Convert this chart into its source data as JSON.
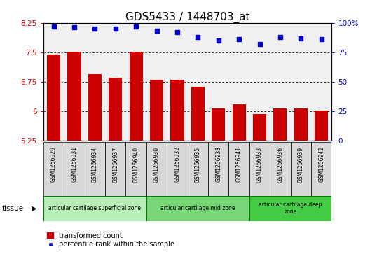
{
  "title": "GDS5433 / 1448703_at",
  "samples": [
    "GSM1256929",
    "GSM1256931",
    "GSM1256934",
    "GSM1256937",
    "GSM1256940",
    "GSM1256930",
    "GSM1256932",
    "GSM1256935",
    "GSM1256938",
    "GSM1256941",
    "GSM1256933",
    "GSM1256936",
    "GSM1256939",
    "GSM1256942"
  ],
  "bar_values": [
    7.45,
    7.52,
    6.95,
    6.85,
    7.52,
    6.8,
    6.8,
    6.62,
    6.08,
    6.18,
    5.93,
    6.08,
    6.08,
    6.03
  ],
  "scatter_values": [
    97,
    96,
    95,
    95,
    97,
    93,
    92,
    88,
    85,
    86,
    82,
    88,
    87,
    86
  ],
  "ylim_left": [
    5.25,
    8.25
  ],
  "ylim_right": [
    0,
    100
  ],
  "yticks_left": [
    5.25,
    6.0,
    6.75,
    7.5,
    8.25
  ],
  "yticks_right": [
    0,
    25,
    50,
    75,
    100
  ],
  "ytick_labels_left": [
    "5.25",
    "6",
    "6.75",
    "7.5",
    "8.25"
  ],
  "ytick_labels_right": [
    "0",
    "25",
    "50",
    "75",
    "100%"
  ],
  "bar_color": "#cc0000",
  "scatter_color": "#0000cc",
  "tissue_groups": [
    {
      "label": "articular cartilage superficial zone",
      "start": 0,
      "end": 5,
      "color": "#b8eeb8"
    },
    {
      "label": "articular cartilage mid zone",
      "start": 5,
      "end": 10,
      "color": "#78d878"
    },
    {
      "label": "articular cartilage deep\nzone",
      "start": 10,
      "end": 14,
      "color": "#44cc44"
    }
  ],
  "legend_bar_label": "transformed count",
  "legend_scatter_label": "percentile rank within the sample",
  "tissue_label": "tissue",
  "title_fontsize": 11,
  "tick_fontsize": 7.5,
  "bar_bottom": 5.25,
  "background_color": "#d8d8d8",
  "plot_bg": "#f0f0f0"
}
